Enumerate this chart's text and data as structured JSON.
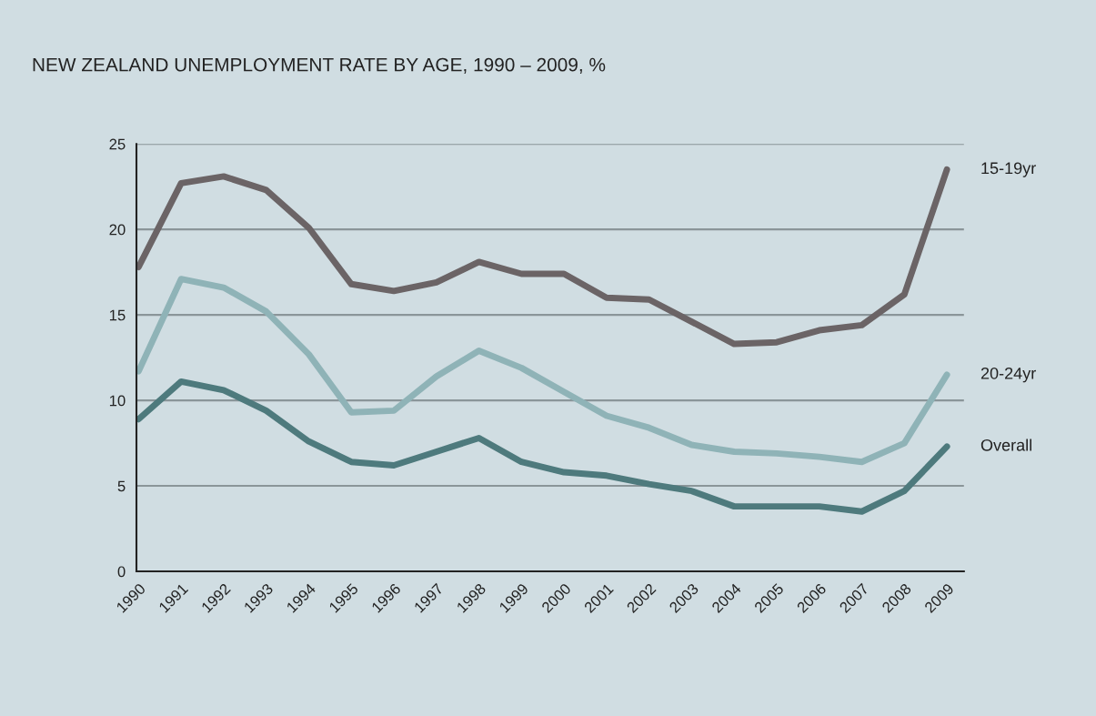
{
  "chart_data": {
    "type": "line",
    "title": "NEW ZEALAND UNEMPLOYMENT RATE BY AGE, 1990 – 2009, %",
    "categories": [
      "1990",
      "1991",
      "1992",
      "1993",
      "1994",
      "1995",
      "1996",
      "1997",
      "1998",
      "1999",
      "2000",
      "2001",
      "2002",
      "2003",
      "2004",
      "2005",
      "2006",
      "2007",
      "2008",
      "2009"
    ],
    "series": [
      {
        "name": "15-19yr",
        "color": "#6b6466",
        "values": [
          17.8,
          22.7,
          23.1,
          22.3,
          20.1,
          16.8,
          16.4,
          16.9,
          18.1,
          17.4,
          17.4,
          16.0,
          15.9,
          14.6,
          13.3,
          13.4,
          14.1,
          14.4,
          16.2,
          23.5
        ]
      },
      {
        "name": "20-24yr",
        "color": "#8fb3b7",
        "values": [
          11.7,
          17.1,
          16.6,
          15.2,
          12.7,
          9.3,
          9.4,
          11.4,
          12.9,
          11.9,
          10.5,
          9.1,
          8.4,
          7.4,
          7.0,
          6.9,
          6.7,
          6.4,
          7.5,
          11.5
        ]
      },
      {
        "name": "Overall",
        "color": "#4e7a7d",
        "values": [
          8.9,
          11.1,
          10.6,
          9.4,
          7.6,
          6.4,
          6.2,
          7.0,
          7.8,
          6.4,
          5.8,
          5.6,
          5.1,
          4.7,
          3.8,
          3.8,
          3.8,
          3.5,
          4.7,
          7.3
        ]
      }
    ],
    "ylim": [
      0,
      25
    ],
    "yticks": [
      0,
      5,
      10,
      15,
      20,
      25
    ],
    "grid": "y",
    "legend": false,
    "marker": "none",
    "line_style": "solid"
  }
}
